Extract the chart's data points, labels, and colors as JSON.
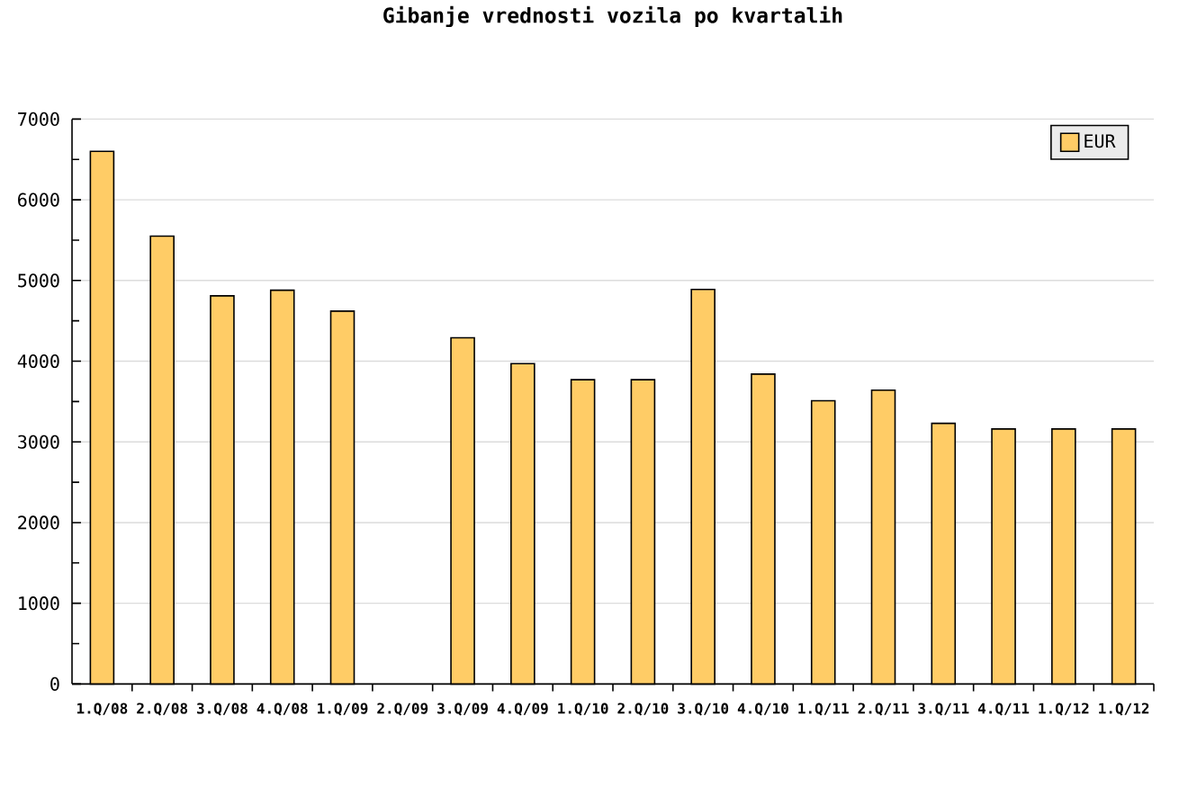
{
  "chart_data": {
    "type": "bar",
    "title": "Gibanje vrednosti vozila po kvartalih",
    "categories": [
      "1.Q/08",
      "2.Q/08",
      "3.Q/08",
      "4.Q/08",
      "1.Q/09",
      "2.Q/09",
      "3.Q/09",
      "4.Q/09",
      "1.Q/10",
      "2.Q/10",
      "3.Q/10",
      "4.Q/10",
      "1.Q/11",
      "2.Q/11",
      "3.Q/11",
      "4.Q/11",
      "1.Q/12",
      "1.Q/12"
    ],
    "series": [
      {
        "name": "EUR",
        "color": "#ffcc66",
        "values": [
          6600,
          5550,
          4810,
          4880,
          4620,
          null,
          4290,
          3970,
          3770,
          3770,
          4890,
          3840,
          3510,
          3640,
          3230,
          3160,
          3160,
          3160
        ]
      }
    ],
    "ylim": [
      0,
      7000
    ],
    "yticks": [
      0,
      {
        "value": 500,
        "label": null
      },
      1000,
      {
        "value": 1500,
        "label": null
      },
      2000,
      {
        "value": 2500,
        "label": null
      },
      3000,
      {
        "value": 3500,
        "label": null
      },
      4000,
      {
        "value": 4500,
        "label": null
      },
      5000,
      {
        "value": 5500,
        "label": null
      },
      6000,
      {
        "value": 6500,
        "label": null
      },
      7000
    ],
    "grid": "y",
    "legend": "top right"
  }
}
